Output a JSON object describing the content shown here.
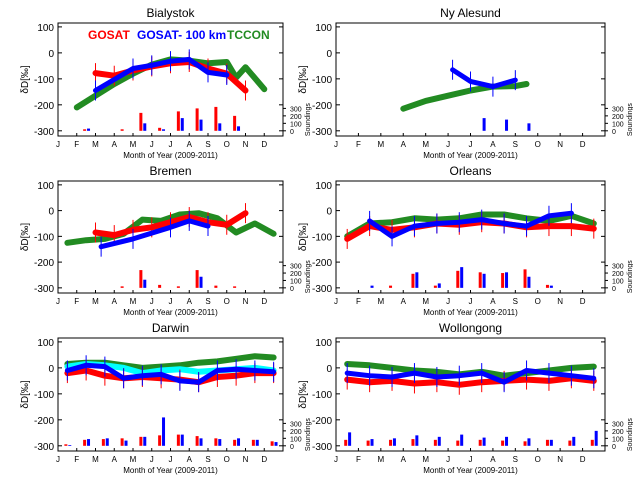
{
  "figure": {
    "ylabel": "δD[‰]",
    "xlabel": "Month of Year (2009-2011)",
    "sounding_label": "Soundings",
    "months": [
      "J",
      "F",
      "M",
      "A",
      "M",
      "J",
      "J",
      "A",
      "S",
      "O",
      "N",
      "D"
    ],
    "ytick_labels": [
      "100",
      "0",
      "-100",
      "-200",
      "-300"
    ],
    "count_tick_labels": [
      "300",
      "200",
      "100",
      "0"
    ],
    "legend": [
      {
        "label": "GOSAT",
        "color": "#ff0000"
      },
      {
        "label": "GOSAT- 100 km",
        "color": "#0000ff"
      },
      {
        "label": "TCCON",
        "color": "#228b22"
      }
    ]
  },
  "colors": {
    "gosat": "#ff0000",
    "gosat100": "#0000ff",
    "tccon": "#228b22",
    "other": "#00ffff"
  },
  "chart_data": [
    {
      "type": "line",
      "title": "Bialystok",
      "xlabel": "Month of Year (2009-2011)",
      "ylabel": "δD[‰]",
      "ylim": [
        -320,
        115
      ],
      "xlim": [
        1,
        13
      ],
      "count_range": [
        0,
        400
      ],
      "series": [
        {
          "name": "GOSAT",
          "x": [
            3.0,
            4.0,
            5.0,
            6.0,
            7.0,
            8.0,
            9.0,
            10.0,
            11.0
          ],
          "y": [
            -78,
            -88,
            -68,
            -52,
            -40,
            -35,
            -60,
            -80,
            -145
          ]
        },
        {
          "name": "GOSAT- 100 km",
          "x": [
            3.0,
            5.0,
            6.0,
            7.0,
            8.0,
            9.0,
            10.0
          ],
          "y": [
            -145,
            -60,
            -48,
            -32,
            -25,
            -75,
            -85
          ]
        },
        {
          "name": "TCCON",
          "x": [
            2.0,
            3.0,
            4.0,
            5.0,
            6.0,
            7.0,
            8.0,
            9.0,
            10.0,
            10.5,
            11.0,
            12.0
          ],
          "y": [
            -210,
            -165,
            -120,
            -80,
            -45,
            -25,
            -30,
            -40,
            -35,
            -95,
            -55,
            -140
          ]
        }
      ],
      "counts": {
        "GOSAT": [
          0,
          20,
          0,
          20,
          240,
          40,
          260,
          300,
          320,
          200,
          0,
          0
        ],
        "GOSAT- 100 km": [
          0,
          30,
          0,
          0,
          100,
          20,
          170,
          150,
          100,
          60,
          0,
          0
        ]
      }
    },
    {
      "type": "line",
      "title": "Ny Alesund",
      "xlabel": "Month of Year (2009-2011)",
      "ylabel": "δD[‰]",
      "ylim": [
        -320,
        115
      ],
      "xlim": [
        1,
        13
      ],
      "count_range": [
        0,
        400
      ],
      "series": [
        {
          "name": "GOSAT- 100 km",
          "x": [
            6.2,
            7.0,
            8.0,
            9.0
          ],
          "y": [
            -65,
            -110,
            -130,
            -105
          ]
        },
        {
          "name": "TCCON",
          "x": [
            4.0,
            5.0,
            6.0,
            7.0,
            8.0,
            9.0,
            9.5
          ],
          "y": [
            -215,
            -185,
            -165,
            -145,
            -130,
            -128,
            -120
          ]
        }
      ],
      "counts": {
        "GOSAT": [
          0,
          0,
          0,
          0,
          0,
          0,
          0,
          0,
          0,
          0,
          0,
          0
        ],
        "GOSAT- 100 km": [
          0,
          0,
          0,
          0,
          0,
          0,
          170,
          150,
          100,
          0,
          0,
          0
        ]
      }
    },
    {
      "type": "line",
      "title": "Bremen",
      "xlabel": "Month of Year (2009-2011)",
      "ylabel": "δD[‰]",
      "ylim": [
        -320,
        115
      ],
      "xlim": [
        1,
        13
      ],
      "count_range": [
        0,
        400
      ],
      "series": [
        {
          "name": "GOSAT",
          "x": [
            3.0,
            4.0,
            5.0,
            6.0,
            7.0,
            8.0,
            9.0,
            10.0,
            11.0
          ],
          "y": [
            -85,
            -95,
            -75,
            -65,
            -45,
            -25,
            -45,
            -55,
            -10
          ]
        },
        {
          "name": "GOSAT- 100 km",
          "x": [
            3.3,
            5.0,
            7.0,
            8.0,
            9.0
          ],
          "y": [
            -140,
            -110,
            -65,
            -40,
            -60
          ]
        },
        {
          "name": "TCCON",
          "x": [
            1.5,
            2.5,
            3.5,
            4.5,
            5.5,
            6.5,
            7.5,
            8.5,
            9.5,
            10.5,
            11.5,
            12.5
          ],
          "y": [
            -125,
            -115,
            -110,
            -90,
            -35,
            -40,
            -15,
            -10,
            -30,
            -85,
            -50,
            -90
          ]
        }
      ],
      "counts": {
        "GOSAT": [
          0,
          0,
          0,
          20,
          240,
          40,
          20,
          240,
          30,
          20,
          0,
          0
        ],
        "GOSAT- 100 km": [
          0,
          0,
          0,
          0,
          110,
          0,
          0,
          150,
          0,
          0,
          0,
          0
        ]
      }
    },
    {
      "type": "line",
      "title": "Orleans",
      "xlabel": "Month of Year (2009-2011)",
      "ylabel": "δD[‰]",
      "ylim": [
        -320,
        115
      ],
      "xlim": [
        1,
        13
      ],
      "count_range": [
        0,
        400
      ],
      "series": [
        {
          "name": "GOSAT",
          "x": [
            1.5,
            2.5,
            3.5,
            4.5,
            5.5,
            6.5,
            7.5,
            8.5,
            9.5,
            10.5,
            11.5,
            12.5
          ],
          "y": [
            -110,
            -60,
            -75,
            -65,
            -50,
            -55,
            -45,
            -50,
            -65,
            -60,
            -60,
            -70
          ]
        },
        {
          "name": "GOSAT- 100 km",
          "x": [
            2.5,
            3.5,
            4.5,
            5.5,
            6.5,
            7.5,
            8.5,
            9.5,
            10.5,
            11.5
          ],
          "y": [
            -40,
            -100,
            -60,
            -50,
            -45,
            -35,
            -50,
            -60,
            -20,
            -10
          ]
        },
        {
          "name": "TCCON",
          "x": [
            1.5,
            2.5,
            3.5,
            4.5,
            5.5,
            6.5,
            7.5,
            8.5,
            9.5,
            10.5,
            11.5,
            12.5
          ],
          "y": [
            -100,
            -50,
            -45,
            -30,
            -35,
            -30,
            -15,
            -15,
            -30,
            -40,
            -20,
            -50
          ]
        }
      ],
      "counts": {
        "GOSAT": [
          0,
          0,
          30,
          190,
          30,
          230,
          210,
          200,
          250,
          40,
          0,
          0
        ],
        "GOSAT- 100 km": [
          0,
          30,
          0,
          210,
          60,
          280,
          190,
          210,
          150,
          30,
          0,
          0
        ]
      }
    },
    {
      "type": "line",
      "title": "Darwin",
      "xlabel": "Month of Year (2009-2011)",
      "ylabel": "δD[‰]",
      "ylim": [
        -320,
        115
      ],
      "xlim": [
        1,
        13
      ],
      "count_range": [
        0,
        400
      ],
      "series": [
        {
          "name": "GOSAT",
          "x": [
            1.5,
            2.5,
            3.5,
            4.5,
            5.5,
            6.5,
            7.5,
            8.5,
            9.5,
            10.5,
            11.5,
            12.5
          ],
          "y": [
            -20,
            -10,
            -30,
            -40,
            -35,
            -40,
            -45,
            -55,
            -35,
            -30,
            -20,
            -20
          ]
        },
        {
          "name": "GOSAT- 100 km",
          "x": [
            1.5,
            2.5,
            3.5,
            4.5,
            5.5,
            6.5,
            7.5,
            8.5,
            9.5,
            10.5,
            11.5,
            12.5
          ],
          "y": [
            -10,
            10,
            5,
            -40,
            -30,
            -25,
            -50,
            -55,
            -10,
            -5,
            -10,
            -15
          ]
        },
        {
          "name": "TCCON",
          "x": [
            1.5,
            2.5,
            3.5,
            4.5,
            5.5,
            6.5,
            7.5,
            8.5,
            9.5,
            10.5,
            11.5,
            12.5
          ],
          "y": [
            15,
            20,
            20,
            10,
            0,
            5,
            10,
            20,
            25,
            35,
            45,
            40
          ]
        },
        {
          "name": "",
          "x": [
            1.5,
            2.5,
            3.5,
            4.5,
            5.5,
            6.5,
            7.5,
            8.5,
            9.5,
            10.5,
            11.5,
            12.5
          ],
          "y": [
            5,
            15,
            10,
            0,
            -20,
            -10,
            -5,
            -15,
            -10,
            -5,
            0,
            -10
          ]
        }
      ],
      "counts": {
        "GOSAT": [
          20,
          80,
          90,
          100,
          120,
          140,
          150,
          130,
          100,
          80,
          80,
          60
        ],
        "GOSAT- 100 km": [
          10,
          90,
          100,
          70,
          120,
          380,
          150,
          100,
          90,
          100,
          80,
          50
        ]
      }
    },
    {
      "type": "line",
      "title": "Wollongong",
      "xlabel": "Month of Year (2009-2011)",
      "ylabel": "δD[‰]",
      "ylim": [
        -320,
        115
      ],
      "xlim": [
        1,
        13
      ],
      "count_range": [
        0,
        400
      ],
      "series": [
        {
          "name": "GOSAT",
          "x": [
            1.5,
            2.5,
            3.5,
            4.5,
            5.5,
            6.5,
            7.5,
            8.5,
            9.5,
            10.5,
            11.5,
            12.5
          ],
          "y": [
            -45,
            -55,
            -50,
            -60,
            -55,
            -65,
            -55,
            -50,
            -45,
            -50,
            -40,
            -50
          ]
        },
        {
          "name": "GOSAT- 100 km",
          "x": [
            1.5,
            2.5,
            3.5,
            4.5,
            5.5,
            6.5,
            7.5,
            8.5,
            9.5,
            10.5,
            11.5,
            12.5
          ],
          "y": [
            -20,
            -30,
            -35,
            -20,
            -35,
            -30,
            -20,
            -55,
            -10,
            -20,
            -30,
            -40
          ]
        },
        {
          "name": "TCCON",
          "x": [
            1.5,
            2.5,
            3.5,
            4.5,
            5.5,
            6.5,
            7.5,
            8.5,
            9.5,
            10.5,
            11.5,
            12.5
          ],
          "y": [
            15,
            10,
            0,
            -10,
            -15,
            -25,
            -15,
            -30,
            -20,
            -10,
            0,
            5
          ]
        }
      ],
      "counts": {
        "GOSAT": [
          80,
          70,
          80,
          90,
          80,
          70,
          80,
          70,
          60,
          80,
          70,
          80
        ],
        "GOSAT- 100 km": [
          180,
          90,
          100,
          140,
          120,
          150,
          110,
          120,
          100,
          80,
          120,
          200
        ]
      }
    }
  ]
}
